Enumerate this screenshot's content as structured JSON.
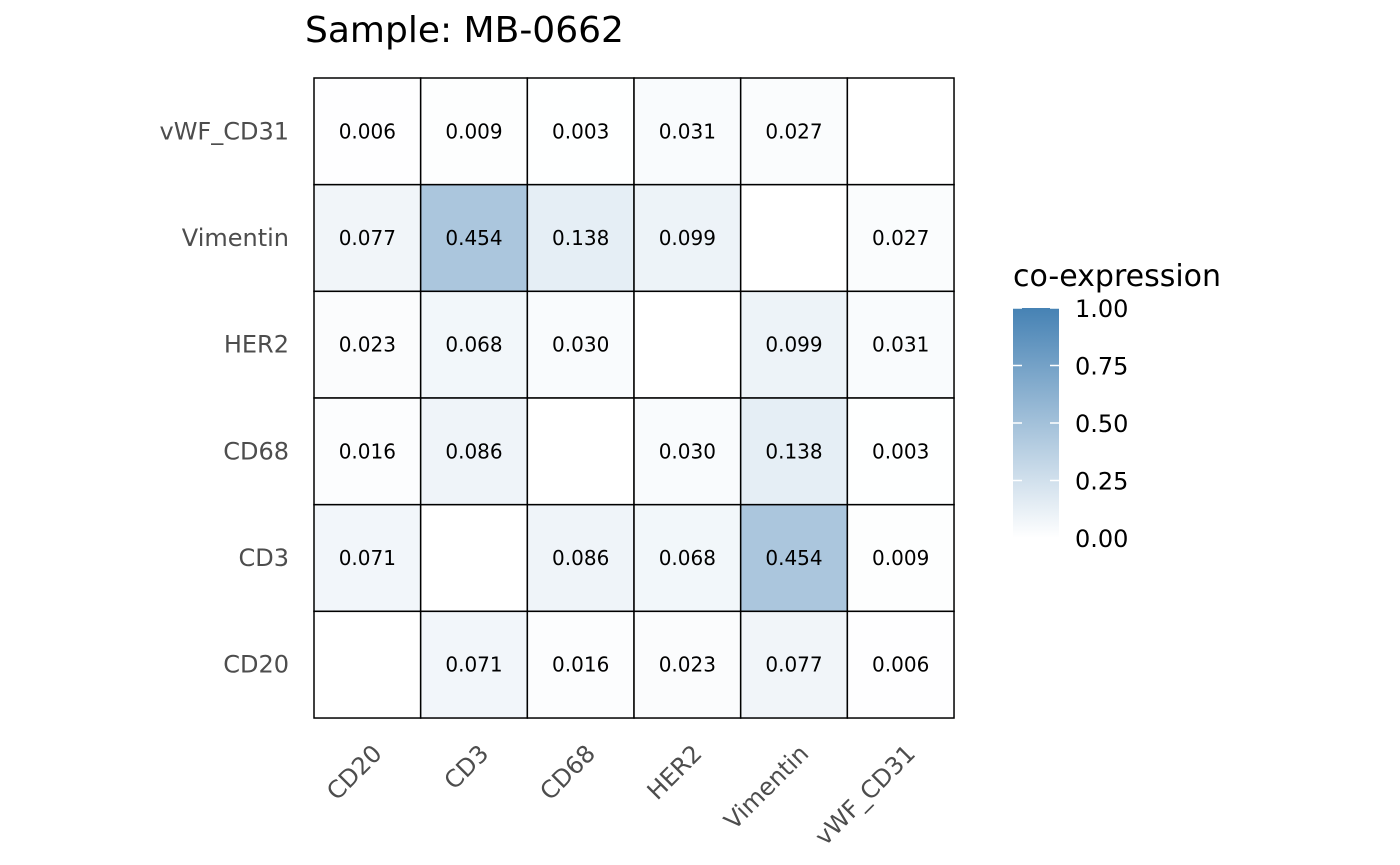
{
  "chart_data": {
    "type": "heatmap",
    "title": "Sample: MB-0662",
    "x_categories": [
      "CD20",
      "CD3",
      "CD68",
      "HER2",
      "Vimentin",
      "vWF_CD31"
    ],
    "y_categories": [
      "CD20",
      "CD3",
      "CD68",
      "HER2",
      "Vimentin",
      "vWF_CD31"
    ],
    "cells": [
      {
        "x": "CD3",
        "y": "CD20",
        "value": 0.071,
        "label": "0.071"
      },
      {
        "x": "CD68",
        "y": "CD20",
        "value": 0.016,
        "label": "0.016"
      },
      {
        "x": "HER2",
        "y": "CD20",
        "value": 0.023,
        "label": "0.023"
      },
      {
        "x": "Vimentin",
        "y": "CD20",
        "value": 0.077,
        "label": "0.077"
      },
      {
        "x": "vWF_CD31",
        "y": "CD20",
        "value": 0.006,
        "label": "0.006"
      },
      {
        "x": "CD20",
        "y": "CD3",
        "value": 0.071,
        "label": "0.071"
      },
      {
        "x": "CD68",
        "y": "CD3",
        "value": 0.086,
        "label": "0.086"
      },
      {
        "x": "HER2",
        "y": "CD3",
        "value": 0.068,
        "label": "0.068"
      },
      {
        "x": "Vimentin",
        "y": "CD3",
        "value": 0.454,
        "label": "0.454"
      },
      {
        "x": "vWF_CD31",
        "y": "CD3",
        "value": 0.009,
        "label": "0.009"
      },
      {
        "x": "CD20",
        "y": "CD68",
        "value": 0.016,
        "label": "0.016"
      },
      {
        "x": "CD3",
        "y": "CD68",
        "value": 0.086,
        "label": "0.086"
      },
      {
        "x": "HER2",
        "y": "CD68",
        "value": 0.03,
        "label": "0.030"
      },
      {
        "x": "Vimentin",
        "y": "CD68",
        "value": 0.138,
        "label": "0.138"
      },
      {
        "x": "vWF_CD31",
        "y": "CD68",
        "value": 0.003,
        "label": "0.003"
      },
      {
        "x": "CD20",
        "y": "HER2",
        "value": 0.023,
        "label": "0.023"
      },
      {
        "x": "CD3",
        "y": "HER2",
        "value": 0.068,
        "label": "0.068"
      },
      {
        "x": "CD68",
        "y": "HER2",
        "value": 0.03,
        "label": "0.030"
      },
      {
        "x": "Vimentin",
        "y": "HER2",
        "value": 0.099,
        "label": "0.099"
      },
      {
        "x": "vWF_CD31",
        "y": "HER2",
        "value": 0.031,
        "label": "0.031"
      },
      {
        "x": "CD20",
        "y": "Vimentin",
        "value": 0.077,
        "label": "0.077"
      },
      {
        "x": "CD3",
        "y": "Vimentin",
        "value": 0.454,
        "label": "0.454"
      },
      {
        "x": "CD68",
        "y": "Vimentin",
        "value": 0.138,
        "label": "0.138"
      },
      {
        "x": "HER2",
        "y": "Vimentin",
        "value": 0.099,
        "label": "0.099"
      },
      {
        "x": "vWF_CD31",
        "y": "Vimentin",
        "value": 0.027,
        "label": "0.027"
      },
      {
        "x": "CD20",
        "y": "vWF_CD31",
        "value": 0.006,
        "label": "0.006"
      },
      {
        "x": "CD3",
        "y": "vWF_CD31",
        "value": 0.009,
        "label": "0.009"
      },
      {
        "x": "CD68",
        "y": "vWF_CD31",
        "value": 0.003,
        "label": "0.003"
      },
      {
        "x": "HER2",
        "y": "vWF_CD31",
        "value": 0.031,
        "label": "0.031"
      },
      {
        "x": "Vimentin",
        "y": "vWF_CD31",
        "value": 0.027,
        "label": "0.027"
      }
    ],
    "legend": {
      "title": "co-expression",
      "placement": "right",
      "ticks": [
        {
          "value": 0.0,
          "label": "0.00"
        },
        {
          "value": 0.25,
          "label": "0.25"
        },
        {
          "value": 0.5,
          "label": "0.50"
        },
        {
          "value": 0.75,
          "label": "0.75"
        },
        {
          "value": 1.0,
          "label": "1.00"
        }
      ]
    },
    "color_scale": {
      "low": "#ffffff",
      "high": "#4682b4",
      "domain": [
        0,
        1
      ]
    },
    "cell_border_color": "#000000",
    "grid": false
  }
}
